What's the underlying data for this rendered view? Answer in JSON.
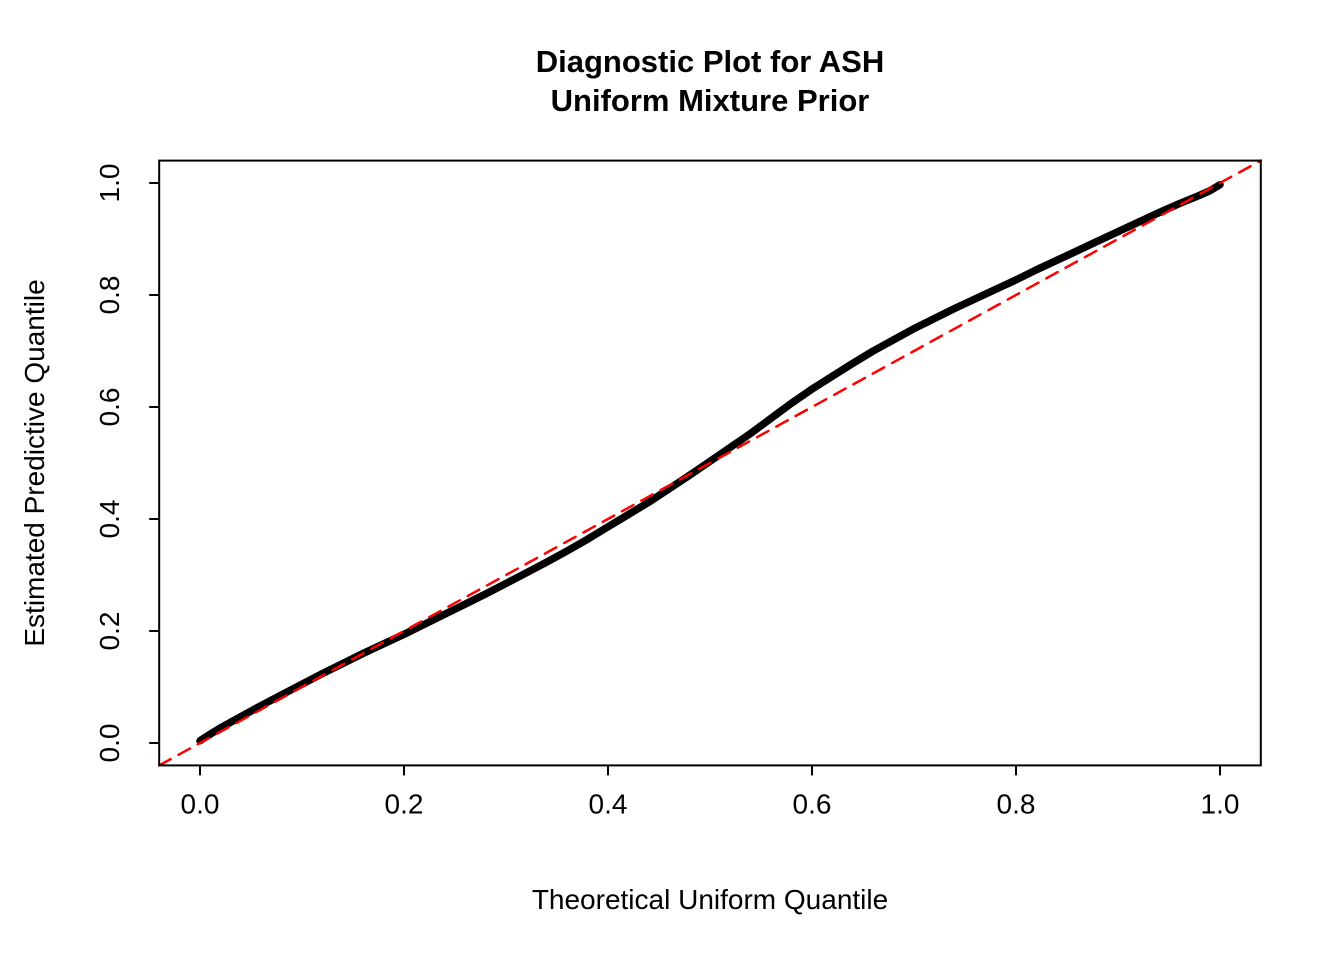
{
  "title": {
    "line1": "Diagnostic Plot for ASH",
    "line2": "Uniform Mixture Prior"
  },
  "axes": {
    "x_label": "Theoretical Uniform Quantile",
    "y_label": "Estimated Predictive Quantile"
  },
  "colors": {
    "curve": "#000000",
    "reference_line": "#FF0000",
    "text": "#000000",
    "background": "#FFFFFF"
  },
  "chart_data": {
    "type": "scatter",
    "title": "Diagnostic Plot for ASH / Uniform Mixture Prior",
    "xlabel": "Theoretical Uniform Quantile",
    "ylabel": "Estimated Predictive Quantile",
    "xlim": [
      -0.04,
      1.04
    ],
    "ylim": [
      -0.04,
      1.04
    ],
    "grid": false,
    "legend": "none",
    "x_ticks": [
      0.0,
      0.2,
      0.4,
      0.6,
      0.8,
      1.0
    ],
    "x_tick_labels": [
      "0.0",
      "0.2",
      "0.4",
      "0.6",
      "0.8",
      "1.0"
    ],
    "y_ticks": [
      0.0,
      0.2,
      0.4,
      0.6,
      0.8,
      1.0
    ],
    "y_tick_labels": [
      "0.0",
      "0.2",
      "0.4",
      "0.6",
      "0.8",
      "1.0"
    ],
    "series": [
      {
        "name": "estimated-vs-theoretical-quantiles",
        "type": "points-curve",
        "color": "#000000",
        "points": [
          [
            0.0,
            0.004
          ],
          [
            0.005,
            0.01
          ],
          [
            0.012,
            0.018
          ],
          [
            0.02,
            0.027
          ],
          [
            0.03,
            0.037
          ],
          [
            0.04,
            0.047
          ],
          [
            0.06,
            0.067
          ],
          [
            0.08,
            0.086
          ],
          [
            0.1,
            0.105
          ],
          [
            0.12,
            0.124
          ],
          [
            0.14,
            0.142
          ],
          [
            0.16,
            0.16
          ],
          [
            0.18,
            0.177
          ],
          [
            0.2,
            0.194
          ],
          [
            0.22,
            0.212
          ],
          [
            0.24,
            0.23
          ],
          [
            0.26,
            0.248
          ],
          [
            0.28,
            0.266
          ],
          [
            0.3,
            0.285
          ],
          [
            0.32,
            0.304
          ],
          [
            0.34,
            0.323
          ],
          [
            0.36,
            0.343
          ],
          [
            0.38,
            0.364
          ],
          [
            0.4,
            0.386
          ],
          [
            0.42,
            0.408
          ],
          [
            0.44,
            0.43
          ],
          [
            0.46,
            0.454
          ],
          [
            0.48,
            0.478
          ],
          [
            0.5,
            0.503
          ],
          [
            0.52,
            0.528
          ],
          [
            0.54,
            0.553
          ],
          [
            0.56,
            0.58
          ],
          [
            0.58,
            0.607
          ],
          [
            0.6,
            0.632
          ],
          [
            0.62,
            0.655
          ],
          [
            0.64,
            0.678
          ],
          [
            0.66,
            0.7
          ],
          [
            0.68,
            0.72
          ],
          [
            0.7,
            0.74
          ],
          [
            0.72,
            0.758
          ],
          [
            0.74,
            0.776
          ],
          [
            0.76,
            0.793
          ],
          [
            0.78,
            0.81
          ],
          [
            0.8,
            0.827
          ],
          [
            0.82,
            0.845
          ],
          [
            0.84,
            0.862
          ],
          [
            0.86,
            0.879
          ],
          [
            0.88,
            0.896
          ],
          [
            0.9,
            0.913
          ],
          [
            0.92,
            0.93
          ],
          [
            0.94,
            0.947
          ],
          [
            0.96,
            0.963
          ],
          [
            0.98,
            0.978
          ],
          [
            0.99,
            0.986
          ],
          [
            1.0,
            0.997
          ]
        ]
      },
      {
        "name": "identity-reference-line",
        "type": "dashed-line",
        "color": "#FF0000",
        "points": [
          [
            -0.04,
            -0.04
          ],
          [
            1.04,
            1.04
          ]
        ]
      }
    ]
  }
}
